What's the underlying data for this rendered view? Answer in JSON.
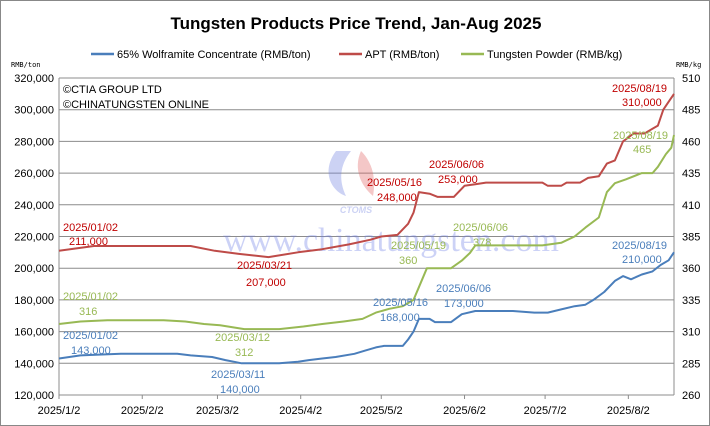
{
  "chart_data": {
    "type": "line",
    "title": "Tungsten Products Price Trend, Jan-Aug 2025",
    "ylabel_left": "RMB/ton",
    "ylabel_right": "RMB/kg",
    "ylim_left": [
      120000,
      320000
    ],
    "ylim_right": [
      260,
      510
    ],
    "yticks_left": [
      "120,000",
      "140,000",
      "160,000",
      "180,000",
      "200,000",
      "220,000",
      "240,000",
      "260,000",
      "280,000",
      "300,000",
      "320,000"
    ],
    "yticks_right": [
      "260",
      "285",
      "310",
      "335",
      "360",
      "385",
      "410",
      "435",
      "460",
      "485",
      "510"
    ],
    "xticks": [
      "2025/1/2",
      "2025/2/2",
      "2025/3/2",
      "2025/4/2",
      "2025/5/2",
      "2025/6/2",
      "2025/7/2",
      "2025/8/2"
    ],
    "xlim": [
      "2025-01-02",
      "2025-08-19"
    ],
    "grid": "horizontal",
    "legend_position": "top",
    "copyright": [
      "©CTIA GROUP LTD",
      "©CHINATUNGSTEN ONLINE"
    ],
    "watermark": "www.chinatungsten.com",
    "watermark_logo": "CTOMS",
    "series": [
      {
        "name": "65% Wolframite Concentrate (RMB/ton)",
        "axis": "left",
        "color": "#4a7ebb",
        "points": [
          [
            "2025-01-02",
            143000
          ],
          [
            "2025-01-10",
            145000
          ],
          [
            "2025-01-25",
            146000
          ],
          [
            "2025-02-15",
            146000
          ],
          [
            "2025-02-20",
            145000
          ],
          [
            "2025-02-28",
            144000
          ],
          [
            "2025-03-05",
            142000
          ],
          [
            "2025-03-08",
            141000
          ],
          [
            "2025-03-11",
            140000
          ],
          [
            "2025-03-25",
            140000
          ],
          [
            "2025-04-01",
            141000
          ],
          [
            "2025-04-05",
            142000
          ],
          [
            "2025-04-10",
            143000
          ],
          [
            "2025-04-15",
            144000
          ],
          [
            "2025-04-22",
            146000
          ],
          [
            "2025-04-26",
            148000
          ],
          [
            "2025-04-30",
            150000
          ],
          [
            "2025-05-03",
            151000
          ],
          [
            "2025-05-10",
            151000
          ],
          [
            "2025-05-12",
            155000
          ],
          [
            "2025-05-14",
            160000
          ],
          [
            "2025-05-16",
            168000
          ],
          [
            "2025-05-20",
            168000
          ],
          [
            "2025-05-22",
            166000
          ],
          [
            "2025-05-28",
            166000
          ],
          [
            "2025-06-01",
            171000
          ],
          [
            "2025-06-06",
            173000
          ],
          [
            "2025-06-20",
            173000
          ],
          [
            "2025-06-28",
            172000
          ],
          [
            "2025-07-03",
            172000
          ],
          [
            "2025-07-08",
            174000
          ],
          [
            "2025-07-13",
            176000
          ],
          [
            "2025-07-17",
            177000
          ],
          [
            "2025-07-20",
            180000
          ],
          [
            "2025-07-24",
            185000
          ],
          [
            "2025-07-28",
            192000
          ],
          [
            "2025-07-31",
            195000
          ],
          [
            "2025-08-03",
            193000
          ],
          [
            "2025-08-07",
            196000
          ],
          [
            "2025-08-11",
            198000
          ],
          [
            "2025-08-14",
            202000
          ],
          [
            "2025-08-17",
            205000
          ],
          [
            "2025-08-19",
            210000
          ]
        ]
      },
      {
        "name": "APT (RMB/ton)",
        "axis": "left",
        "color": "#be4b48",
        "points": [
          [
            "2025-01-02",
            211000
          ],
          [
            "2025-01-15",
            214000
          ],
          [
            "2025-02-20",
            214000
          ],
          [
            "2025-03-01",
            211000
          ],
          [
            "2025-03-10",
            209000
          ],
          [
            "2025-03-21",
            207000
          ],
          [
            "2025-04-01",
            210000
          ],
          [
            "2025-04-10",
            212000
          ],
          [
            "2025-04-20",
            215000
          ],
          [
            "2025-04-28",
            218000
          ],
          [
            "2025-05-02",
            220000
          ],
          [
            "2025-05-08",
            221000
          ],
          [
            "2025-05-12",
            228000
          ],
          [
            "2025-05-14",
            235000
          ],
          [
            "2025-05-16",
            248000
          ],
          [
            "2025-05-20",
            247000
          ],
          [
            "2025-05-23",
            245000
          ],
          [
            "2025-05-29",
            245000
          ],
          [
            "2025-06-02",
            252000
          ],
          [
            "2025-06-06",
            253000
          ],
          [
            "2025-06-10",
            254000
          ],
          [
            "2025-07-01",
            254000
          ],
          [
            "2025-07-03",
            252000
          ],
          [
            "2025-07-08",
            252000
          ],
          [
            "2025-07-10",
            254000
          ],
          [
            "2025-07-15",
            254000
          ],
          [
            "2025-07-18",
            257000
          ],
          [
            "2025-07-22",
            258000
          ],
          [
            "2025-07-25",
            266000
          ],
          [
            "2025-07-28",
            268000
          ],
          [
            "2025-07-31",
            280000
          ],
          [
            "2025-08-04",
            285000
          ],
          [
            "2025-08-08",
            285000
          ],
          [
            "2025-08-10",
            287000
          ],
          [
            "2025-08-13",
            290000
          ],
          [
            "2025-08-15",
            300000
          ],
          [
            "2025-08-17",
            305000
          ],
          [
            "2025-08-19",
            310000
          ]
        ]
      },
      {
        "name": "Tungsten Powder (RMB/kg)",
        "axis": "right",
        "color": "#98b954",
        "points": [
          [
            "2025-01-02",
            316
          ],
          [
            "2025-01-10",
            318
          ],
          [
            "2025-01-20",
            319
          ],
          [
            "2025-02-10",
            319
          ],
          [
            "2025-02-18",
            318
          ],
          [
            "2025-02-25",
            316
          ],
          [
            "2025-03-03",
            315
          ],
          [
            "2025-03-12",
            312
          ],
          [
            "2025-03-25",
            312
          ],
          [
            "2025-04-03",
            314
          ],
          [
            "2025-04-10",
            316
          ],
          [
            "2025-04-18",
            318
          ],
          [
            "2025-04-25",
            320
          ],
          [
            "2025-04-30",
            325
          ],
          [
            "2025-05-05",
            328
          ],
          [
            "2025-05-10",
            330
          ],
          [
            "2025-05-14",
            335
          ],
          [
            "2025-05-16",
            345
          ],
          [
            "2025-05-19",
            360
          ],
          [
            "2025-05-28",
            360
          ],
          [
            "2025-06-01",
            366
          ],
          [
            "2025-06-04",
            372
          ],
          [
            "2025-06-06",
            378
          ],
          [
            "2025-07-01",
            378
          ],
          [
            "2025-07-08",
            380
          ],
          [
            "2025-07-13",
            385
          ],
          [
            "2025-07-17",
            392
          ],
          [
            "2025-07-22",
            400
          ],
          [
            "2025-07-25",
            420
          ],
          [
            "2025-07-28",
            427
          ],
          [
            "2025-08-01",
            430
          ],
          [
            "2025-08-07",
            435
          ],
          [
            "2025-08-11",
            435
          ],
          [
            "2025-08-13",
            440
          ],
          [
            "2025-08-16",
            450
          ],
          [
            "2025-08-18",
            455
          ],
          [
            "2025-08-19",
            465
          ]
        ]
      }
    ],
    "annotations": [
      {
        "series": "APT",
        "date": "2025/01/02",
        "value": "211,000"
      },
      {
        "series": "APT",
        "date": "2025/03/21",
        "value": "207,000"
      },
      {
        "series": "APT",
        "date": "2025/05/16",
        "value": "248,000"
      },
      {
        "series": "APT",
        "date": "2025/06/06",
        "value": "253,000"
      },
      {
        "series": "APT",
        "date": "2025/08/19",
        "value": "310,000"
      },
      {
        "series": "Wolframite",
        "date": "2025/01/02",
        "value": "143,000"
      },
      {
        "series": "Wolframite",
        "date": "2025/03/11",
        "value": "140,000"
      },
      {
        "series": "Wolframite",
        "date": "2025/05/16",
        "value": "168,000"
      },
      {
        "series": "Wolframite",
        "date": "2025/06/06",
        "value": "173,000"
      },
      {
        "series": "Wolframite",
        "date": "2025/08/19",
        "value": "210,000"
      },
      {
        "series": "Powder",
        "date": "2025/01/02",
        "value": "316"
      },
      {
        "series": "Powder",
        "date": "2025/03/12",
        "value": "312"
      },
      {
        "series": "Powder",
        "date": "2025/05/19",
        "value": "360"
      },
      {
        "series": "Powder",
        "date": "2025/06/06",
        "value": "378"
      },
      {
        "series": "Powder",
        "date": "2025/08/19",
        "value": "465"
      }
    ]
  }
}
